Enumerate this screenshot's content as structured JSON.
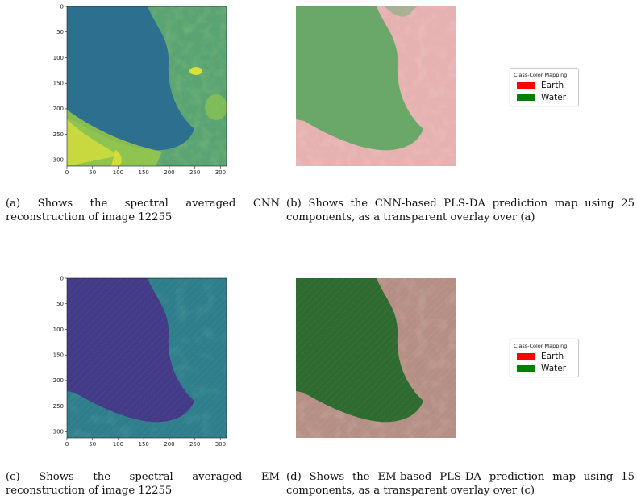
{
  "panels": [
    {
      "id": "a",
      "y_ticks": [
        "0",
        "50",
        "100",
        "150",
        "200",
        "250",
        "300"
      ],
      "x_ticks": [
        "0",
        "50",
        "100",
        "150",
        "200",
        "250",
        "300"
      ],
      "caption": "(a) Shows the spectral averaged CNN reconstruction of image 12255"
    },
    {
      "id": "b",
      "caption": "(b) Shows the CNN-based PLS-DA prediction map using 25 components, as a transparent overlay over (a)",
      "legend": {
        "title": "Class-Color Mapping",
        "items": [
          {
            "label": "Earth",
            "color": "#ff0000"
          },
          {
            "label": "Water",
            "color": "#008000"
          }
        ]
      }
    },
    {
      "id": "c",
      "y_ticks": [
        "0",
        "50",
        "100",
        "150",
        "200",
        "250",
        "300"
      ],
      "x_ticks": [
        "0",
        "50",
        "100",
        "150",
        "200",
        "250",
        "300"
      ],
      "caption": "(c) Shows the spectral averaged EM reconstruction of image 12255"
    },
    {
      "id": "d",
      "caption": "(d) Shows the EM-based PLS-DA prediction map using 15 components, as a transparent overlay over (c)",
      "legend": {
        "title": "Class-Color Mapping",
        "items": [
          {
            "label": "Earth",
            "color": "#ff0000"
          },
          {
            "label": "Water",
            "color": "#008000"
          }
        ]
      }
    }
  ],
  "palette": {
    "cnn_water": "#2e6e8e",
    "cnn_land": "#6fb26a",
    "cnn_bright": "#cfe03a",
    "em_water": "#413a87",
    "em_land": "#2f7f8c",
    "overlay_water": "#63a86a",
    "overlay_land": "#e7b6b6"
  }
}
